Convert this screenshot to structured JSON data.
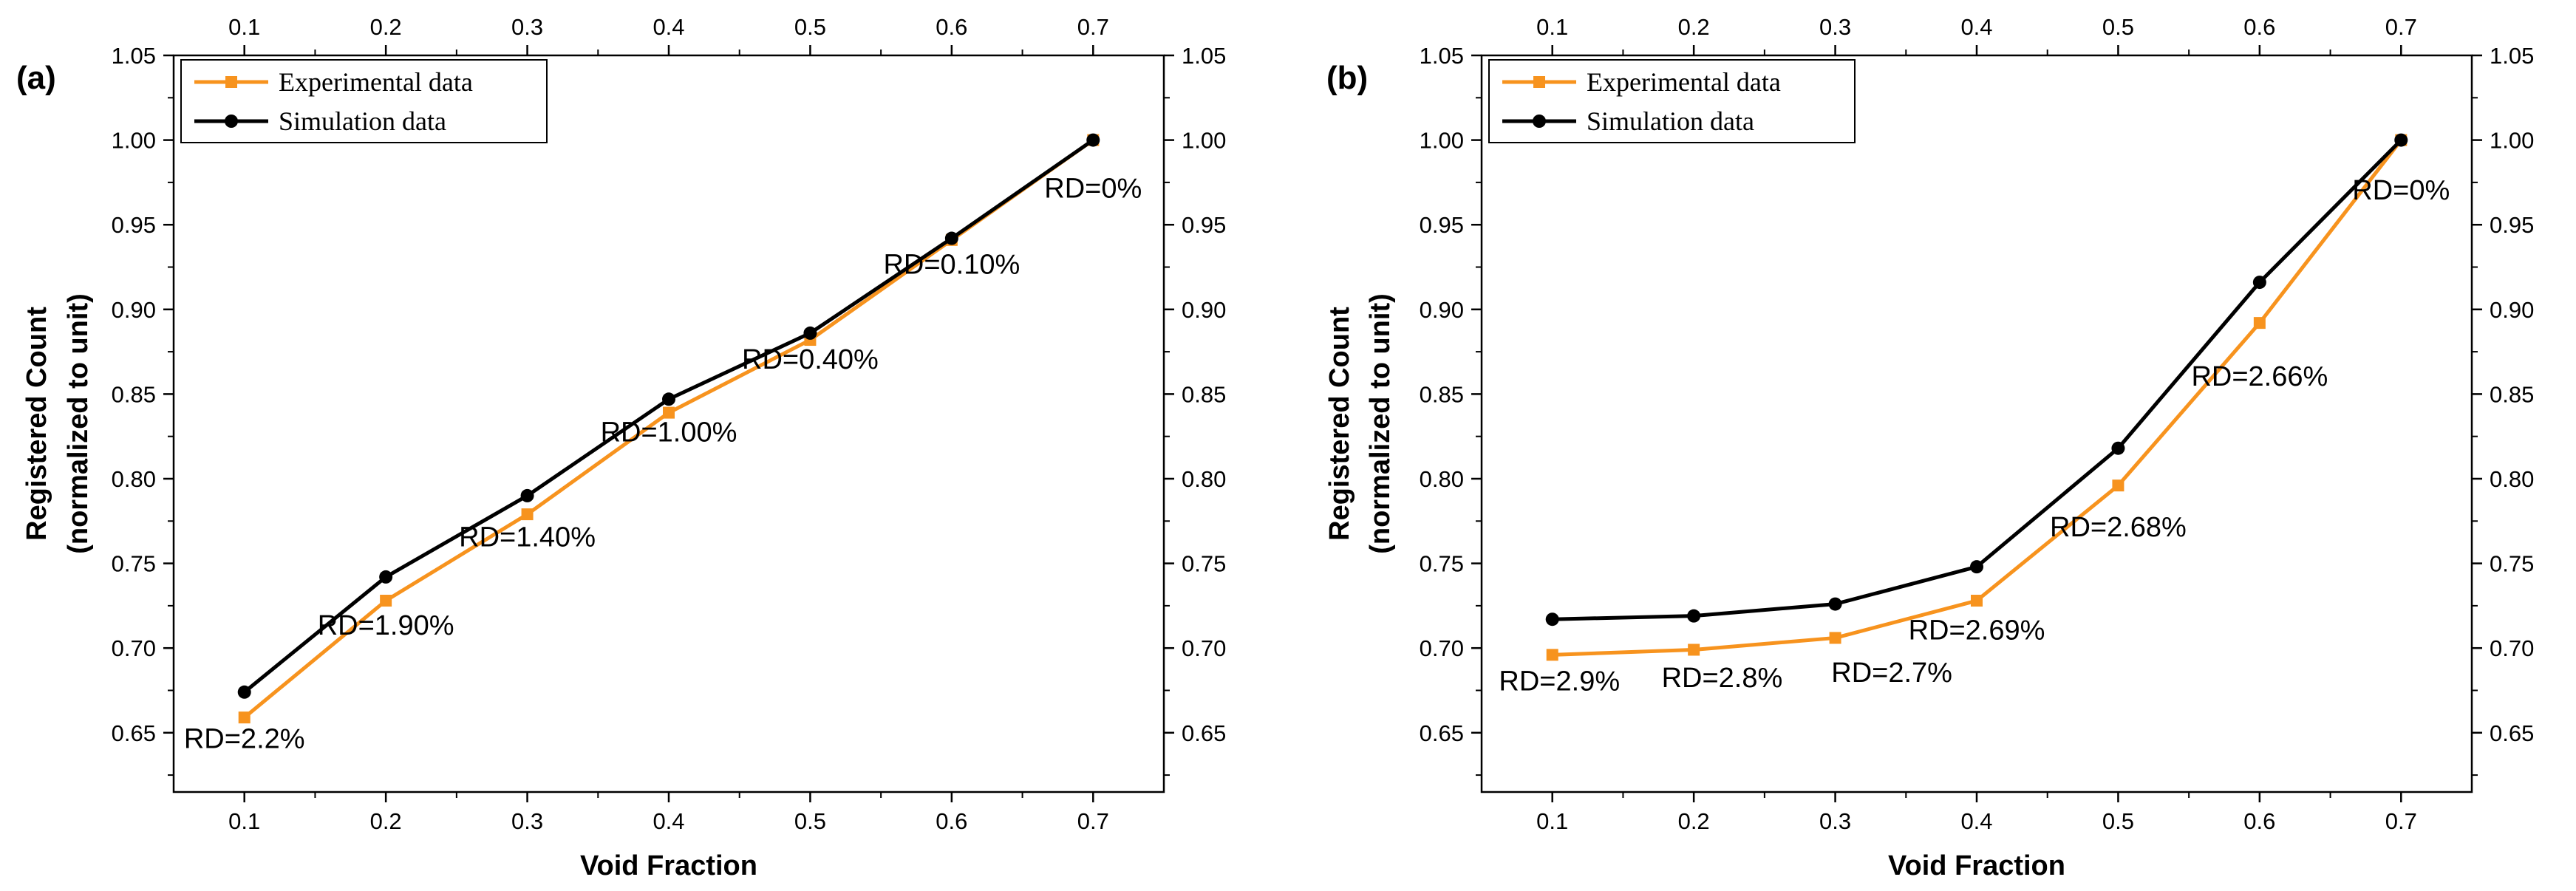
{
  "chart_data": [
    {
      "type": "line",
      "panel_label": "(a)",
      "xlabel": "Void Fraction",
      "ylabel": [
        "Registered Count",
        "(normalized to unit)"
      ],
      "xlim": [
        0.05,
        0.75
      ],
      "ylim": [
        0.615,
        1.05
      ],
      "xticks": [
        0.1,
        0.2,
        0.3,
        0.4,
        0.5,
        0.6,
        0.7
      ],
      "yticks": [
        0.65,
        0.7,
        0.75,
        0.8,
        0.85,
        0.9,
        0.95,
        1.0,
        1.05
      ],
      "x": [
        0.1,
        0.2,
        0.3,
        0.4,
        0.5,
        0.6,
        0.7
      ],
      "series": [
        {
          "name": "Experimental data",
          "color": "#f7931e",
          "marker": "square",
          "values": [
            0.659,
            0.728,
            0.779,
            0.839,
            0.882,
            0.941,
            1.0
          ]
        },
        {
          "name": "Simulation data",
          "color": "#000000",
          "marker": "circle",
          "values": [
            0.674,
            0.742,
            0.79,
            0.847,
            0.886,
            0.942,
            1.0
          ]
        }
      ],
      "annotations": [
        {
          "text": "RD=2.2%",
          "x": 0.1,
          "y": 0.641
        },
        {
          "text": "RD=1.90%",
          "x": 0.2,
          "y": 0.708
        },
        {
          "text": "RD=1.40%",
          "x": 0.3,
          "y": 0.76
        },
        {
          "text": "RD=1.00%",
          "x": 0.4,
          "y": 0.822
        },
        {
          "text": "RD=0.40%",
          "x": 0.5,
          "y": 0.865
        },
        {
          "text": "RD=0.10%",
          "x": 0.6,
          "y": 0.921
        },
        {
          "text": "RD=0%",
          "x": 0.7,
          "y": 0.966
        }
      ],
      "legend": "top-left",
      "grid": false
    },
    {
      "type": "line",
      "panel_label": "(b)",
      "xlabel": "Void Fraction",
      "ylabel": [
        "Registered Count",
        "(normalized to unit)"
      ],
      "xlim": [
        0.05,
        0.75
      ],
      "ylim": [
        0.615,
        1.05
      ],
      "xticks": [
        0.1,
        0.2,
        0.3,
        0.4,
        0.5,
        0.6,
        0.7
      ],
      "yticks": [
        0.65,
        0.7,
        0.75,
        0.8,
        0.85,
        0.9,
        0.95,
        1.0,
        1.05
      ],
      "x": [
        0.1,
        0.2,
        0.3,
        0.4,
        0.5,
        0.6,
        0.7
      ],
      "series": [
        {
          "name": "Experimental data",
          "color": "#f7931e",
          "marker": "square",
          "values": [
            0.696,
            0.699,
            0.706,
            0.728,
            0.796,
            0.892,
            1.0
          ]
        },
        {
          "name": "Simulation data",
          "color": "#000000",
          "marker": "circle",
          "values": [
            0.717,
            0.719,
            0.726,
            0.748,
            0.818,
            0.916,
            1.0
          ]
        }
      ],
      "annotations": [
        {
          "text": "RD=2.9%",
          "x": 0.105,
          "y": 0.675
        },
        {
          "text": "RD=2.8%",
          "x": 0.22,
          "y": 0.677
        },
        {
          "text": "RD=2.7%",
          "x": 0.34,
          "y": 0.68
        },
        {
          "text": "RD=2.69%",
          "x": 0.4,
          "y": 0.705
        },
        {
          "text": "RD=2.68%",
          "x": 0.5,
          "y": 0.766
        },
        {
          "text": "RD=2.66%",
          "x": 0.6,
          "y": 0.855
        },
        {
          "text": "RD=0%",
          "x": 0.7,
          "y": 0.965
        }
      ],
      "legend": "top-left",
      "grid": false
    }
  ]
}
